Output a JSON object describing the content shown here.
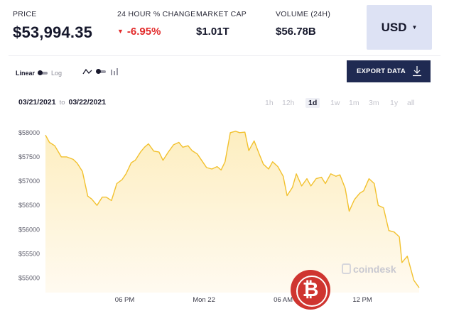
{
  "stats": {
    "price_label": "PRICE",
    "price_value": "53,994.35",
    "currency_symbol": "$",
    "change_label": "24 HOUR % CHANGE",
    "change_value": "-6.95%",
    "cap_label": "MARKET CAP",
    "cap_value": "$1.01T",
    "volume_label": "VOLUME (24H)",
    "volume_value": "$56.78B"
  },
  "currency_selector": {
    "label": "USD",
    "icon": "caret-down-icon"
  },
  "scale_toggle": {
    "on_label": "Linear",
    "off_label": "Log"
  },
  "chart_type_toggle": {
    "icons": [
      "line-chart-icon",
      "toggle-switch",
      "bar-chart-icon"
    ]
  },
  "export": {
    "label": "EXPORT DATA",
    "icon": "download-icon"
  },
  "date_range": {
    "from": "03/21/2021",
    "to_label": "to",
    "to": "03/22/2021"
  },
  "intervals": [
    {
      "label": "1h",
      "active": false
    },
    {
      "label": "12h",
      "active": false
    },
    {
      "label": "1d",
      "active": true
    },
    {
      "label": "1w",
      "active": false
    },
    {
      "label": "1m",
      "active": false
    },
    {
      "label": "3m",
      "active": false
    },
    {
      "label": "1y",
      "active": false
    },
    {
      "label": "all",
      "active": false
    }
  ],
  "watermark": "coindesk",
  "badge_letter": "₿",
  "colors": {
    "line": "#f2c12e",
    "area_top": "#fdeec0",
    "area_bottom": "#fffaf0",
    "negative": "#e22a2a",
    "button_dark": "#1f2a52",
    "currency_bg": "#dde2f4"
  },
  "chart_data": {
    "type": "area",
    "title": "",
    "xlabel": "",
    "ylabel": "",
    "ylim": [
      54700,
      58100
    ],
    "yticks": [
      55000,
      55500,
      56000,
      56500,
      57000,
      57500,
      58000
    ],
    "ytick_labels": [
      "$55000",
      "$55500",
      "$56000",
      "$56500",
      "$57000",
      "$57500",
      "$58000"
    ],
    "xtick_labels": [
      "06 PM",
      "Mon 22",
      "06 AM",
      "12 PM"
    ],
    "xtick_positions": [
      12,
      18,
      24,
      30
    ],
    "x": [
      6.0,
      6.3,
      6.7,
      7.2,
      7.6,
      8.1,
      8.4,
      8.8,
      9.2,
      9.5,
      9.9,
      10.3,
      10.6,
      11.0,
      11.4,
      11.8,
      12.1,
      12.5,
      12.8,
      13.2,
      13.5,
      13.8,
      14.2,
      14.6,
      14.9,
      15.3,
      15.7,
      16.1,
      16.4,
      16.8,
      17.1,
      17.5,
      17.9,
      18.2,
      18.6,
      19.0,
      19.3,
      19.6,
      20.0,
      20.4,
      20.7,
      21.1,
      21.4,
      21.8,
      22.2,
      22.5,
      22.9,
      23.2,
      23.6,
      24.0,
      24.3,
      24.7,
      25.0,
      25.4,
      25.8,
      26.1,
      26.5,
      26.9,
      27.2,
      27.6,
      28.0,
      28.3,
      28.7,
      29.0,
      29.4,
      29.8,
      30.1,
      30.5,
      30.9,
      31.2,
      31.6,
      32.0,
      32.4,
      32.6,
      32.8,
      33.0,
      33.4,
      33.9,
      34.3
    ],
    "y": [
      57950,
      57800,
      57730,
      57500,
      57500,
      57450,
      57370,
      57200,
      56690,
      56630,
      56500,
      56670,
      56670,
      56600,
      56950,
      57030,
      57150,
      57380,
      57430,
      57600,
      57700,
      57770,
      57620,
      57600,
      57430,
      57600,
      57750,
      57800,
      57700,
      57730,
      57630,
      57560,
      57400,
      57280,
      57250,
      57300,
      57230,
      57400,
      58000,
      58030,
      58000,
      58010,
      57630,
      57830,
      57550,
      57350,
      57250,
      57400,
      57300,
      57100,
      56700,
      56870,
      57150,
      56900,
      57050,
      56900,
      57050,
      57080,
      56950,
      57150,
      57100,
      57130,
      56850,
      56380,
      56620,
      56750,
      56800,
      57050,
      56950,
      56500,
      56450,
      55980,
      55950,
      55900,
      55850,
      55320,
      55450,
      54950,
      54800
    ]
  }
}
